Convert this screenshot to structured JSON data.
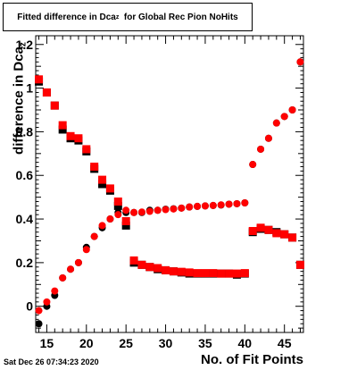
{
  "title": {
    "prefix": "Fitted difference in Dca",
    "sub": "z",
    "suffix": "for Global Rec Pion NoHits"
  },
  "timestamp": "Sat Dec 26 07:34:23 2020",
  "chart_data": {
    "type": "scatter",
    "xlabel": "No. of Fit Points",
    "ylabel": {
      "text": "difference in Dca",
      "sub": "z"
    },
    "xlim": [
      13.6,
      47.4
    ],
    "ylim": [
      -0.12,
      1.24
    ],
    "xticks": [
      15,
      20,
      25,
      30,
      35,
      40,
      45
    ],
    "yticks": [
      0,
      0.2,
      0.4,
      0.6,
      0.8,
      1.0,
      1.2
    ],
    "ytick_labels": [
      "0",
      "0.2",
      "0.4",
      "0.6",
      "0.8",
      "1",
      "1.2"
    ],
    "grid": false,
    "series": [
      {
        "marker": "circle",
        "color": "#000000",
        "points": [
          [
            14,
            -0.08
          ],
          [
            15,
            0.0
          ],
          [
            16,
            0.05
          ],
          [
            17,
            0.13
          ],
          [
            18,
            0.17
          ],
          [
            19,
            0.2
          ],
          [
            20,
            0.27
          ],
          [
            21,
            0.32
          ],
          [
            22,
            0.36
          ],
          [
            23,
            0.4
          ],
          [
            24,
            0.43
          ],
          [
            25,
            0.43
          ],
          [
            26,
            0.43
          ],
          [
            27,
            0.43
          ],
          [
            28,
            0.44
          ],
          [
            29,
            0.44
          ],
          [
            30,
            0.445
          ],
          [
            31,
            0.447
          ],
          [
            32,
            0.45
          ],
          [
            33,
            0.455
          ],
          [
            34,
            0.458
          ],
          [
            35,
            0.46
          ],
          [
            36,
            0.462
          ],
          [
            37,
            0.464
          ],
          [
            38,
            0.468
          ],
          [
            39,
            0.47
          ],
          [
            40,
            0.474
          ],
          [
            41,
            0.65
          ],
          [
            42,
            0.72
          ],
          [
            43,
            0.77
          ],
          [
            44,
            0.84
          ],
          [
            45,
            0.87
          ],
          [
            46,
            0.9
          ],
          [
            47,
            1.12
          ]
        ]
      },
      {
        "marker": "square",
        "color": "#000000",
        "points": [
          [
            14,
            1.03
          ],
          [
            15,
            0.98
          ],
          [
            16,
            0.92
          ],
          [
            17,
            0.81
          ],
          [
            18,
            0.77
          ],
          [
            19,
            0.76
          ],
          [
            20,
            0.71
          ],
          [
            21,
            0.63
          ],
          [
            22,
            0.56
          ],
          [
            23,
            0.53
          ],
          [
            24,
            0.46
          ],
          [
            25,
            0.37
          ],
          [
            26,
            0.2
          ],
          [
            27,
            0.19
          ],
          [
            28,
            0.18
          ],
          [
            29,
            0.17
          ],
          [
            30,
            0.165
          ],
          [
            31,
            0.16
          ],
          [
            32,
            0.155
          ],
          [
            33,
            0.15
          ],
          [
            34,
            0.15
          ],
          [
            35,
            0.15
          ],
          [
            36,
            0.15
          ],
          [
            37,
            0.15
          ],
          [
            38,
            0.15
          ],
          [
            39,
            0.145
          ],
          [
            40,
            0.15
          ],
          [
            41,
            0.34
          ],
          [
            42,
            0.355
          ],
          [
            43,
            0.35
          ],
          [
            44,
            0.34
          ],
          [
            45,
            0.33
          ],
          [
            46,
            0.315
          ],
          [
            47,
            0.19
          ]
        ]
      },
      {
        "marker": "circle",
        "color": "#ff0000",
        "points": [
          [
            14,
            -0.02
          ],
          [
            15,
            0.02
          ],
          [
            16,
            0.07
          ],
          [
            17,
            0.13
          ],
          [
            18,
            0.17
          ],
          [
            19,
            0.2
          ],
          [
            20,
            0.26
          ],
          [
            21,
            0.32
          ],
          [
            22,
            0.37
          ],
          [
            23,
            0.4
          ],
          [
            24,
            0.42
          ],
          [
            25,
            0.44
          ],
          [
            26,
            0.43
          ],
          [
            27,
            0.432
          ],
          [
            28,
            0.435
          ],
          [
            29,
            0.44
          ],
          [
            30,
            0.443
          ],
          [
            31,
            0.446
          ],
          [
            32,
            0.45
          ],
          [
            33,
            0.455
          ],
          [
            34,
            0.458
          ],
          [
            35,
            0.46
          ],
          [
            36,
            0.462
          ],
          [
            37,
            0.465
          ],
          [
            38,
            0.468
          ],
          [
            39,
            0.47
          ],
          [
            40,
            0.474
          ],
          [
            41,
            0.65
          ],
          [
            42,
            0.72
          ],
          [
            43,
            0.77
          ],
          [
            44,
            0.84
          ],
          [
            45,
            0.87
          ],
          [
            46,
            0.9
          ],
          [
            47,
            1.12
          ]
        ]
      },
      {
        "marker": "square",
        "color": "#ff0000",
        "points": [
          [
            14,
            1.04
          ],
          [
            15,
            0.98
          ],
          [
            16,
            0.92
          ],
          [
            17,
            0.83
          ],
          [
            18,
            0.78
          ],
          [
            19,
            0.77
          ],
          [
            20,
            0.72
          ],
          [
            21,
            0.64
          ],
          [
            22,
            0.58
          ],
          [
            23,
            0.54
          ],
          [
            24,
            0.48
          ],
          [
            25,
            0.39
          ],
          [
            26,
            0.21
          ],
          [
            27,
            0.19
          ],
          [
            28,
            0.18
          ],
          [
            29,
            0.175
          ],
          [
            30,
            0.165
          ],
          [
            31,
            0.16
          ],
          [
            32,
            0.158
          ],
          [
            33,
            0.155
          ],
          [
            34,
            0.152
          ],
          [
            35,
            0.152
          ],
          [
            36,
            0.152
          ],
          [
            37,
            0.15
          ],
          [
            38,
            0.15
          ],
          [
            39,
            0.15
          ],
          [
            40,
            0.152
          ],
          [
            41,
            0.345
          ],
          [
            42,
            0.36
          ],
          [
            43,
            0.35
          ],
          [
            44,
            0.335
          ],
          [
            45,
            0.33
          ],
          [
            46,
            0.315
          ],
          [
            47,
            0.19
          ]
        ]
      }
    ]
  }
}
